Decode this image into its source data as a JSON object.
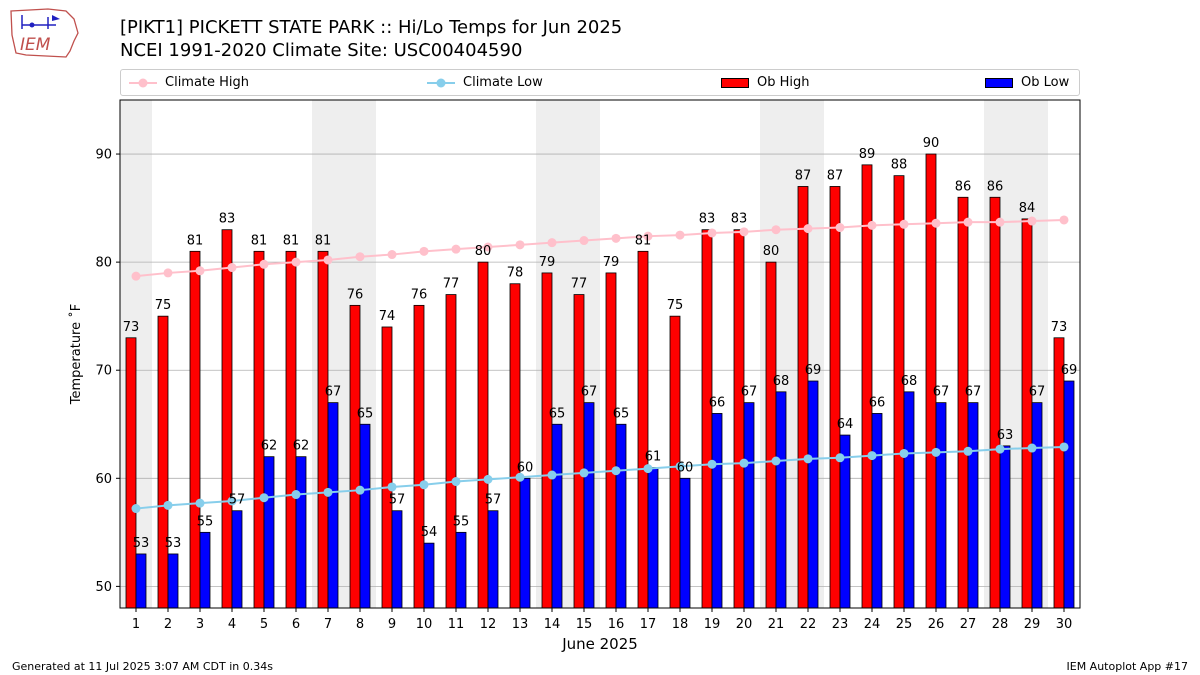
{
  "header": {
    "title_line1": "[PIKT1] PICKETT STATE PARK :: Hi/Lo Temps for Jun 2025",
    "title_line2": "NCEI 1991-2020 Climate Site: USC00404590",
    "logo_text": "IEM"
  },
  "footer": {
    "generated": "Generated at 11 Jul 2025 3:07 AM CDT in 0.34s",
    "app": "IEM Autoplot App #17"
  },
  "legend": {
    "climate_high": "Climate High",
    "climate_low": "Climate Low",
    "ob_high": "Ob High",
    "ob_low": "Ob Low"
  },
  "chart_data": {
    "type": "bar",
    "xlabel": "June 2025",
    "ylabel": "Temperature ˚F",
    "ylim": [
      48,
      95
    ],
    "yticks": [
      50,
      60,
      70,
      80,
      90
    ],
    "grid": true,
    "legend_position": "top",
    "weekend_shading": [
      [
        1,
        1
      ],
      [
        7,
        8
      ],
      [
        14,
        15
      ],
      [
        21,
        22
      ],
      [
        28,
        29
      ]
    ],
    "categories": [
      "1",
      "2",
      "3",
      "4",
      "5",
      "6",
      "7",
      "8",
      "9",
      "10",
      "11",
      "12",
      "13",
      "14",
      "15",
      "16",
      "17",
      "18",
      "19",
      "20",
      "21",
      "22",
      "23",
      "24",
      "25",
      "26",
      "27",
      "28",
      "29",
      "30"
    ],
    "series": [
      {
        "name": "Ob High",
        "kind": "bar",
        "color": "#ff0000",
        "values": [
          73,
          75,
          81,
          83,
          81,
          81,
          81,
          76,
          74,
          76,
          77,
          80,
          78,
          79,
          77,
          79,
          81,
          75,
          83,
          83,
          80,
          87,
          87,
          89,
          88,
          90,
          86,
          86,
          84,
          73
        ]
      },
      {
        "name": "Ob Low",
        "kind": "bar",
        "color": "#0000ff",
        "values": [
          53,
          53,
          55,
          57,
          62,
          62,
          67,
          65,
          57,
          54,
          55,
          57,
          60,
          65,
          67,
          65,
          61,
          60,
          66,
          67,
          68,
          69,
          64,
          66,
          68,
          67,
          67,
          63,
          67,
          69
        ]
      },
      {
        "name": "Climate High",
        "kind": "line",
        "color": "#ffc0cb",
        "values": [
          78.7,
          79.0,
          79.2,
          79.5,
          79.8,
          80.0,
          80.2,
          80.5,
          80.7,
          81.0,
          81.2,
          81.4,
          81.6,
          81.8,
          82.0,
          82.2,
          82.4,
          82.5,
          82.7,
          82.8,
          83.0,
          83.1,
          83.2,
          83.4,
          83.5,
          83.6,
          83.7,
          83.7,
          83.8,
          83.9
        ]
      },
      {
        "name": "Climate Low",
        "kind": "line",
        "color": "#87ceeb",
        "values": [
          57.2,
          57.5,
          57.7,
          57.9,
          58.2,
          58.5,
          58.7,
          58.9,
          59.2,
          59.4,
          59.7,
          59.9,
          60.1,
          60.3,
          60.5,
          60.7,
          60.9,
          61.1,
          61.3,
          61.4,
          61.6,
          61.8,
          61.9,
          62.1,
          62.3,
          62.4,
          62.5,
          62.7,
          62.8,
          62.9
        ]
      }
    ]
  }
}
